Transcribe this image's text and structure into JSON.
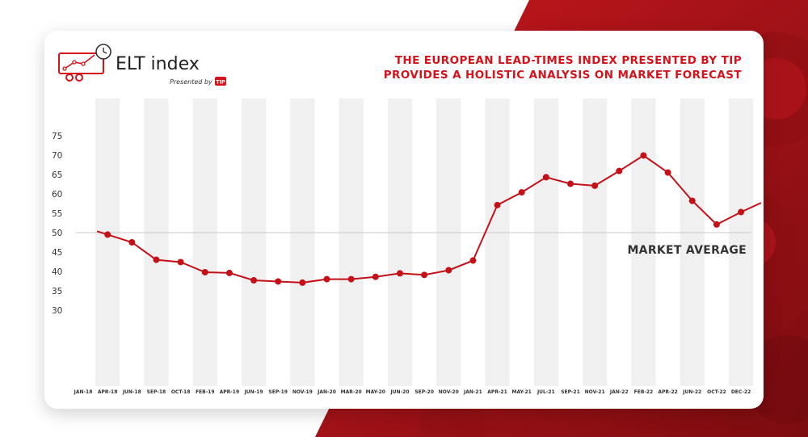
{
  "header": {
    "logo_text": "ELT index",
    "presented_by": "Presented by",
    "brand_badge": "TIP",
    "headline_line1": "THE EUROPEAN LEAD-TIMES INDEX PRESENTED BY TIP",
    "headline_line2": "PROVIDES A HOLISTIC ANALYSIS ON MARKET FORECAST"
  },
  "colors": {
    "accent": "#d6121b",
    "line": "#c41118",
    "stripe": "#f0f0f0",
    "background_red": "#b5141a"
  },
  "chart_data": {
    "type": "line",
    "title": "",
    "xlabel": "",
    "ylabel": "",
    "ylim": [
      30,
      75
    ],
    "yticks": [
      30,
      35,
      40,
      45,
      50,
      55,
      60,
      65,
      70,
      75
    ],
    "categories": [
      "JAN-18",
      "APR-18",
      "JUN-18",
      "SEP-18",
      "OCT-18",
      "FEB-19",
      "APR-19",
      "JUN-19",
      "SEP-19",
      "NOV-19",
      "JAN-20",
      "MAR-20",
      "MAY-20",
      "JUN-20",
      "SEP-20",
      "NOV-20",
      "JAN-21",
      "APR-21",
      "MAY-21",
      "JUL-21",
      "SEP-21",
      "NOV-21",
      "JAN-22",
      "FEB-22",
      "APR-22",
      "JUN-22",
      "OCT-22",
      "DEC-22"
    ],
    "series": [
      {
        "values": [
          null,
          49.5,
          47.5,
          43,
          42.4,
          39.8,
          39.6,
          37.7,
          37.4,
          37.1,
          38,
          38,
          38.6,
          39.5,
          39.1,
          40.3,
          42.8,
          57.1,
          60.4,
          64.3,
          62.6,
          62.1,
          65.9,
          69.9,
          65.5,
          58.2,
          52.1,
          55.3
        ]
      }
    ],
    "reference_line": {
      "value": 50,
      "label": "MARKET AVERAGE"
    },
    "grid": "alternating vertical column stripes",
    "legend": "none"
  }
}
